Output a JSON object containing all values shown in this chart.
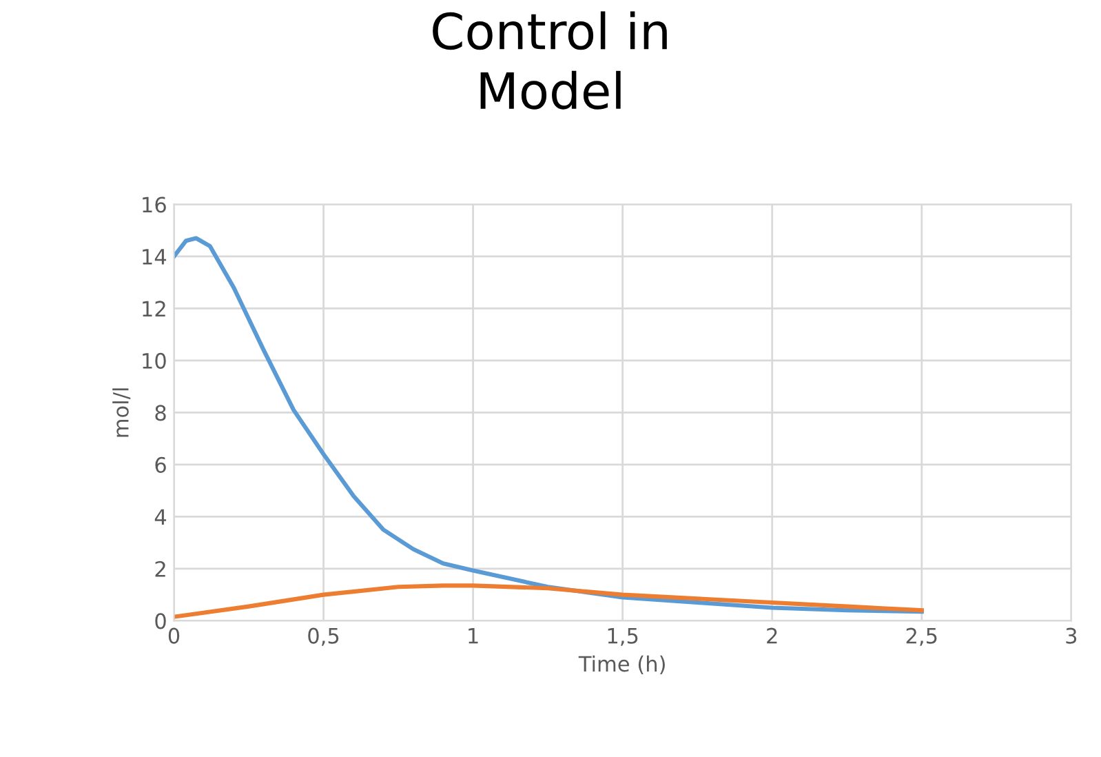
{
  "chart_data": {
    "type": "line",
    "title": "Control in\nModel",
    "xlabel": "Time (h)",
    "ylabel": "mol/l",
    "xlim": [
      0,
      3
    ],
    "xticks": [
      0,
      {
        "value": 0.5,
        "label": "0,5"
      },
      1,
      {
        "value": 1.5,
        "label": "1,5"
      },
      2,
      {
        "value": 2.5,
        "label": "2,5"
      },
      3
    ],
    "ylim": [
      0,
      16
    ],
    "yticks": [
      0,
      2,
      4,
      6,
      8,
      10,
      12,
      14,
      16
    ],
    "grid": true,
    "marker": "none",
    "line_style": "solid",
    "legend": false,
    "series": [
      {
        "color": "#5b9bd5",
        "x": [
          0,
          0.04,
          0.074,
          0.12,
          0.2,
          0.3,
          0.4,
          0.5,
          0.6,
          0.7,
          0.8,
          0.9,
          1,
          1.25,
          1.5,
          1.75,
          2,
          2.25,
          2.5
        ],
        "values": [
          14,
          14.6,
          14.7,
          14.4,
          12.8,
          10.4,
          8.1,
          6.4,
          4.8,
          3.5,
          2.75,
          2.2,
          1.93,
          1.3,
          0.9,
          0.7,
          0.5,
          0.4,
          0.35
        ]
      },
      {
        "color": "#ed7d31",
        "x": [
          0,
          0.25,
          0.5,
          0.75,
          0.9,
          1,
          1.25,
          1.5,
          1.75,
          2,
          2.25,
          2.5
        ],
        "values": [
          0.15,
          0.55,
          1.0,
          1.3,
          1.35,
          1.35,
          1.25,
          1.0,
          0.85,
          0.7,
          0.55,
          0.4
        ]
      }
    ]
  }
}
